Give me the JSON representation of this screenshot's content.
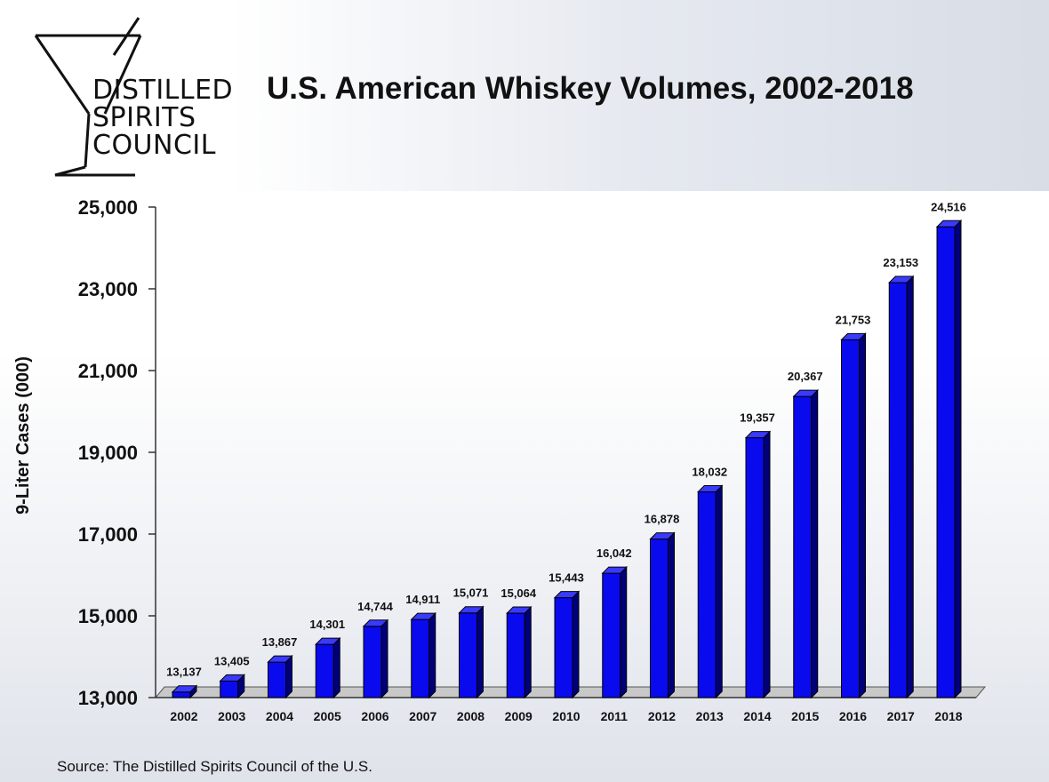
{
  "header": {
    "logo_lines": [
      "DISTILLED",
      "SPIRITS",
      "COUNCIL"
    ],
    "title": "U.S. American Whiskey Volumes, 2002-2018"
  },
  "footer": {
    "source": "Source:  The Distilled Spirits Council of the U.S."
  },
  "colors": {
    "bar_face": "#0a0aee",
    "bar_side": "#00007a",
    "bar_top": "#3a3aff"
  },
  "chart_data": {
    "type": "bar",
    "title": "U.S. American Whiskey Volumes, 2002-2018",
    "xlabel": "",
    "ylabel": "9-Liter Cases (000)",
    "ylim": [
      13000,
      25000
    ],
    "yticks": [
      13000,
      15000,
      17000,
      19000,
      21000,
      23000,
      25000
    ],
    "ytick_labels": [
      "13,000",
      "15,000",
      "17,000",
      "19,000",
      "21,000",
      "23,000",
      "25,000"
    ],
    "categories": [
      "2002",
      "2003",
      "2004",
      "2005",
      "2006",
      "2007",
      "2008",
      "2009",
      "2010",
      "2011",
      "2012",
      "2013",
      "2014",
      "2015",
      "2016",
      "2017",
      "2018"
    ],
    "values": [
      13137,
      13405,
      13867,
      14301,
      14744,
      14911,
      15071,
      15064,
      15443,
      16042,
      16878,
      18032,
      19357,
      20367,
      21753,
      23153,
      24516
    ],
    "data_labels": [
      "13,137",
      "13,405",
      "13,867",
      "14,301",
      "14,744",
      "14,911",
      "15,071",
      "15,064",
      "15,443",
      "16,042",
      "16,878",
      "18,032",
      "19,357",
      "20,367",
      "21,753",
      "23,153",
      "24,516"
    ],
    "grid": false,
    "legend": "none",
    "style": "3d-bar"
  }
}
